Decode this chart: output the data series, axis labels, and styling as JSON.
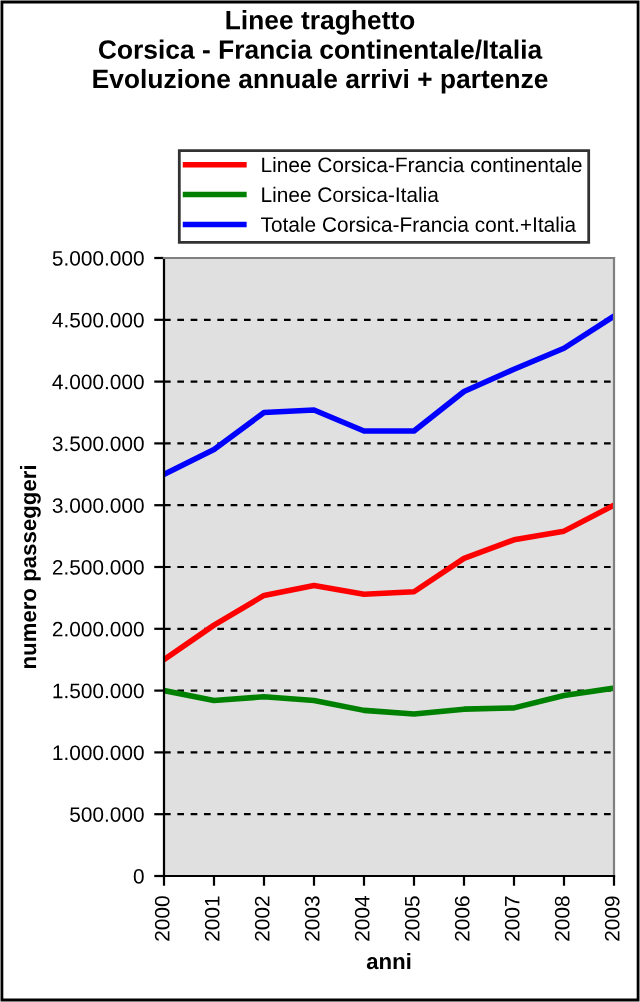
{
  "chart_data": {
    "type": "line",
    "title": "Linee traghetto\nCorsica - Francia continentale/Italia\nEvoluzione annuale arrivi + partenze",
    "xlabel": "anni",
    "ylabel": "numero passeggeri",
    "categories": [
      "2000",
      "2001",
      "2002",
      "2003",
      "2004",
      "2005",
      "2006",
      "2007",
      "2008",
      "2009"
    ],
    "series": [
      {
        "name": "Linee Corsica-Francia continentale",
        "color": "#ff0000",
        "values": [
          1750000,
          2030000,
          2270000,
          2350000,
          2280000,
          2300000,
          2570000,
          2720000,
          2790000,
          3000000
        ]
      },
      {
        "name": "Linee Corsica-Italia",
        "color": "#008000",
        "values": [
          1500000,
          1420000,
          1450000,
          1420000,
          1340000,
          1310000,
          1350000,
          1360000,
          1460000,
          1520000
        ]
      },
      {
        "name": "Totale Corsica-Francia cont.+Italia",
        "color": "#0000ff",
        "values": [
          3250000,
          3450000,
          3750000,
          3770000,
          3600000,
          3600000,
          3920000,
          4100000,
          4270000,
          4530000
        ]
      }
    ],
    "ylim": [
      0,
      5000000
    ],
    "yticks": [
      {
        "value": 0,
        "label": "0"
      },
      {
        "value": 500000,
        "label": "500.000"
      },
      {
        "value": 1000000,
        "label": "1.000.000"
      },
      {
        "value": 1500000,
        "label": "1.500.000"
      },
      {
        "value": 2000000,
        "label": "2.000.000"
      },
      {
        "value": 2500000,
        "label": "2.500.000"
      },
      {
        "value": 3000000,
        "label": "3.000.000"
      },
      {
        "value": 3500000,
        "label": "3.500.000"
      },
      {
        "value": 4000000,
        "label": "4.000.000"
      },
      {
        "value": 4500000,
        "label": "4.500.000"
      },
      {
        "value": 5000000,
        "label": "5.000.000"
      }
    ],
    "grid": "y",
    "legend": "top",
    "line_style": "solid",
    "marker": "none"
  }
}
